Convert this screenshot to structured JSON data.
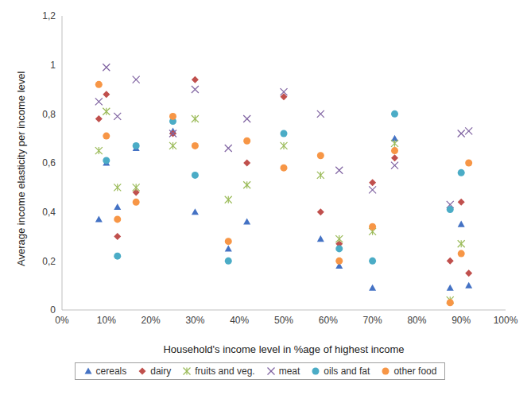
{
  "chart_data": {
    "type": "scatter",
    "x_label": "Household's income level in %age of highest income",
    "y_label": "Average income elasticity per income level",
    "x": [
      8.3,
      10,
      12.5,
      16.7,
      25,
      30,
      37.5,
      41.7,
      50,
      58.3,
      62.5,
      70,
      75,
      87.5,
      90,
      91.7
    ],
    "xlim": [
      0,
      100
    ],
    "xticks": [
      {
        "value": 0,
        "label": "0%"
      },
      {
        "value": 10,
        "label": "10%"
      },
      {
        "value": 20,
        "label": "20%"
      },
      {
        "value": 30,
        "label": "30%"
      },
      {
        "value": 40,
        "label": "40%"
      },
      {
        "value": 50,
        "label": "50%"
      },
      {
        "value": 60,
        "label": "60%"
      },
      {
        "value": 70,
        "label": "70%"
      },
      {
        "value": 80,
        "label": "80%"
      },
      {
        "value": 90,
        "label": "90%"
      },
      {
        "value": 100,
        "label": "100%"
      }
    ],
    "ylim": [
      0,
      1.2
    ],
    "yticks": [
      0,
      {
        "value": 0.2,
        "label": "0,2"
      },
      {
        "value": 0.4,
        "label": "0,4"
      },
      {
        "value": 0.6,
        "label": "0,6"
      },
      {
        "value": 0.8,
        "label": "0,8"
      },
      1,
      {
        "value": 1.2,
        "label": "1,2"
      }
    ],
    "grid": false,
    "legend": "bottom",
    "series": [
      {
        "name": "cereals",
        "color": "#4472c4",
        "marker": "triangle",
        "values": [
          0.37,
          0.6,
          0.42,
          0.66,
          0.73,
          0.4,
          0.25,
          0.36,
          null,
          0.29,
          0.18,
          0.09,
          0.7,
          0.09,
          0.35,
          0.1
        ]
      },
      {
        "name": "dairy",
        "color": "#c0504d",
        "marker": "diamond",
        "values": [
          0.78,
          0.88,
          0.3,
          0.48,
          0.72,
          0.94,
          null,
          0.6,
          0.87,
          0.4,
          0.27,
          0.52,
          0.62,
          0.2,
          0.44,
          0.15
        ]
      },
      {
        "name": "fruits and veg.",
        "color": "#9bbb59",
        "marker": "asterisk",
        "values": [
          0.65,
          0.81,
          0.5,
          0.5,
          0.67,
          0.78,
          0.45,
          0.51,
          0.67,
          0.55,
          0.29,
          0.32,
          0.68,
          0.04,
          0.27,
          null
        ]
      },
      {
        "name": "meat",
        "color": "#8064a2",
        "marker": "x",
        "values": [
          0.85,
          0.99,
          0.79,
          0.94,
          0.72,
          0.9,
          0.66,
          0.78,
          0.89,
          0.8,
          0.57,
          0.49,
          0.59,
          0.43,
          0.72,
          0.73
        ]
      },
      {
        "name": "oils and fat",
        "color": "#4bacc6",
        "marker": "circle",
        "values": [
          null,
          0.61,
          0.22,
          0.67,
          0.77,
          0.55,
          0.2,
          null,
          0.72,
          null,
          0.25,
          0.2,
          0.8,
          0.41,
          0.56,
          null
        ]
      },
      {
        "name": "other food",
        "color": "#f79646",
        "marker": "circle",
        "values": [
          0.92,
          0.71,
          0.37,
          0.44,
          0.79,
          0.67,
          0.28,
          0.69,
          0.58,
          0.63,
          0.2,
          0.34,
          0.65,
          0.03,
          0.23,
          0.6
        ]
      }
    ]
  }
}
